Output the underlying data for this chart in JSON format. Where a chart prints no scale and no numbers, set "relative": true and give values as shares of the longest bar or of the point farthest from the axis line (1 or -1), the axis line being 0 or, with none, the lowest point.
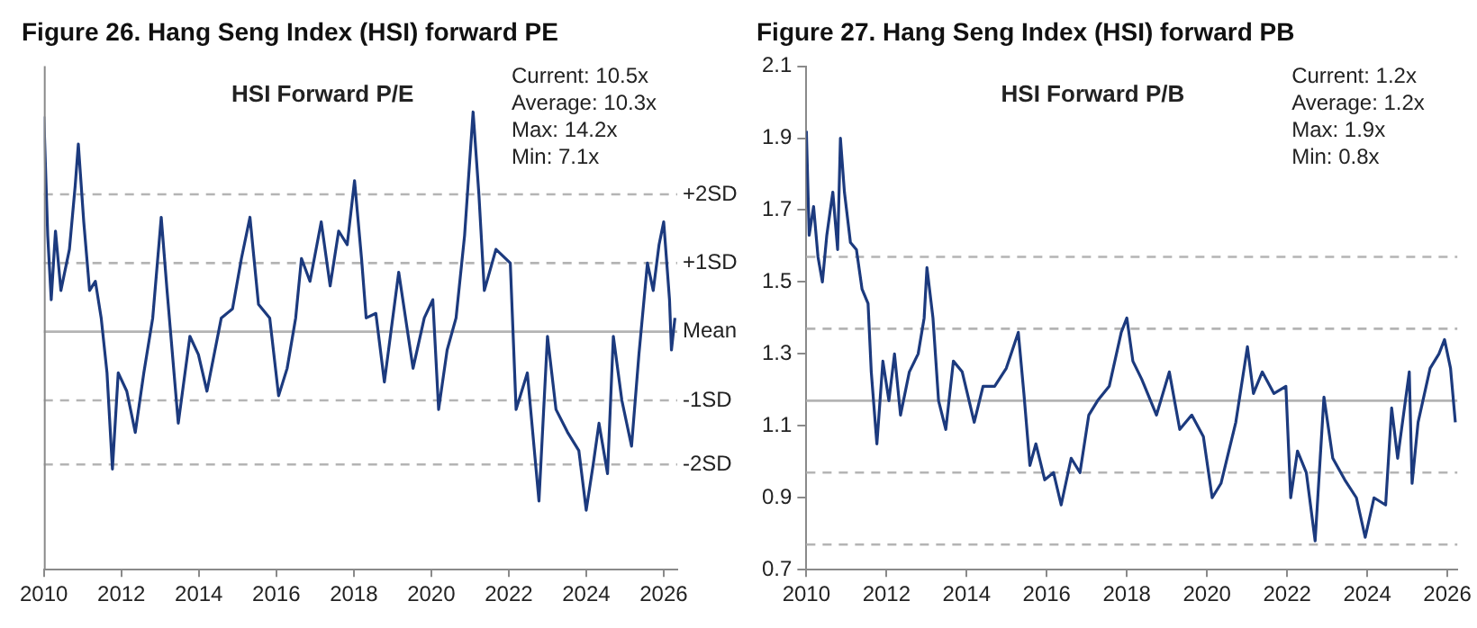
{
  "chart_data": [
    {
      "type": "line",
      "title": "Figure 26. Hang Seng Index (HSI) forward PE",
      "annotations": [
        "HSI Forward P/E",
        "Current: 10.5x",
        "Average: 10.3x",
        "Max: 14.2x",
        "Min: 7.1x"
      ],
      "x": [
        2010.0,
        2010.1,
        2010.19,
        2010.3,
        2010.44,
        2010.66,
        2010.81,
        2010.89,
        2011.03,
        2011.18,
        2011.33,
        2011.48,
        2011.63,
        2011.77,
        2011.92,
        2012.14,
        2012.36,
        2012.58,
        2012.81,
        2013.03,
        2013.18,
        2013.47,
        2013.77,
        2013.99,
        2014.21,
        2014.58,
        2014.87,
        2015.1,
        2015.32,
        2015.54,
        2015.83,
        2016.06,
        2016.28,
        2016.5,
        2016.65,
        2016.87,
        2017.16,
        2017.39,
        2017.61,
        2017.83,
        2018.02,
        2018.2,
        2018.32,
        2018.57,
        2018.79,
        2019.16,
        2019.53,
        2019.82,
        2020.04,
        2020.19,
        2020.41,
        2020.64,
        2020.86,
        2021.08,
        2021.23,
        2021.37,
        2021.67,
        2022.04,
        2022.19,
        2022.48,
        2022.78,
        2023.0,
        2023.22,
        2023.52,
        2023.81,
        2024.0,
        2024.18,
        2024.33,
        2024.55,
        2024.7,
        2024.92,
        2025.17,
        2025.36,
        2025.58,
        2025.73,
        2025.88,
        2026.0,
        2026.15,
        2026.2,
        2026.29
      ],
      "relative": true,
      "series": [
        {
          "color": "#1c3a7e",
          "values": [
            0.99,
            0.73,
            0.59,
            0.74,
            0.61,
            0.7,
            0.84,
            0.93,
            0.76,
            0.61,
            0.63,
            0.55,
            0.43,
            0.22,
            0.43,
            0.39,
            0.3,
            0.43,
            0.55,
            0.77,
            0.61,
            0.32,
            0.51,
            0.47,
            0.39,
            0.55,
            0.57,
            0.68,
            0.77,
            0.58,
            0.55,
            0.38,
            0.44,
            0.55,
            0.68,
            0.63,
            0.76,
            0.62,
            0.74,
            0.71,
            0.85,
            0.68,
            0.55,
            0.56,
            0.41,
            0.65,
            0.44,
            0.55,
            0.59,
            0.35,
            0.48,
            0.55,
            0.73,
            1,
            0.82,
            0.61,
            0.7,
            0.67,
            0.35,
            0.43,
            0.15,
            0.51,
            0.35,
            0.3,
            0.26,
            0.13,
            0.23,
            0.32,
            0.21,
            0.51,
            0.37,
            0.27,
            0.47,
            0.67,
            0.61,
            0.71,
            0.76,
            0.59,
            0.48,
            0.55
          ]
        }
      ],
      "xlim": [
        2010,
        2026.35
      ],
      "xticks": [
        2010,
        2012,
        2014,
        2016,
        2018,
        2020,
        2022,
        2024,
        2026
      ],
      "ref_lines": [
        {
          "axis": "y",
          "value": 0.82,
          "label": "+2SD",
          "color": "#b4b4b4",
          "line_style": "dashed"
        },
        {
          "axis": "y",
          "value": 0.67,
          "label": "+1SD",
          "color": "#b4b4b4",
          "line_style": "dashed"
        },
        {
          "axis": "y",
          "value": 0.52,
          "label": "Mean",
          "color": "#b4b4b4",
          "line_style": "solid"
        },
        {
          "axis": "y",
          "value": 0.37,
          "label": "-1SD",
          "color": "#b4b4b4",
          "line_style": "dashed"
        },
        {
          "axis": "y",
          "value": 0.23,
          "label": "-2SD",
          "color": "#b4b4b4",
          "line_style": "dashed"
        }
      ]
    },
    {
      "type": "line",
      "title": "Figure 27. Hang Seng Index (HSI) forward PB",
      "annotations": [
        "HSI Forward P/B",
        "Current: 1.2x",
        "Average: 1.2x",
        "Max: 1.9x",
        "Min: 0.8x"
      ],
      "x": [
        2010.0,
        2010.07,
        2010.18,
        2010.29,
        2010.4,
        2010.51,
        2010.66,
        2010.78,
        2010.85,
        2010.95,
        2011.1,
        2011.25,
        2011.39,
        2011.54,
        2011.62,
        2011.76,
        2011.91,
        2012.06,
        2012.2,
        2012.35,
        2012.57,
        2012.79,
        2012.94,
        2013.01,
        2013.16,
        2013.3,
        2013.48,
        2013.67,
        2013.89,
        2014.19,
        2014.41,
        2014.7,
        2014.99,
        2015.29,
        2015.43,
        2015.58,
        2015.73,
        2015.95,
        2016.17,
        2016.36,
        2016.61,
        2016.83,
        2017.05,
        2017.27,
        2017.56,
        2017.86,
        2018.0,
        2018.15,
        2018.37,
        2018.74,
        2019.06,
        2019.32,
        2019.62,
        2019.91,
        2020.13,
        2020.35,
        2020.72,
        2021.01,
        2021.16,
        2021.38,
        2021.67,
        2021.97,
        2022.09,
        2022.26,
        2022.48,
        2022.7,
        2022.92,
        2023.14,
        2023.44,
        2023.73,
        2023.95,
        2024.17,
        2024.46,
        2024.61,
        2024.76,
        2025.05,
        2025.12,
        2025.27,
        2025.57,
        2025.79,
        2025.93,
        2026.08,
        2026.2
      ],
      "series": [
        {
          "color": "#1c3a7e",
          "values": [
            1.92,
            1.63,
            1.71,
            1.57,
            1.5,
            1.63,
            1.75,
            1.59,
            1.9,
            1.75,
            1.61,
            1.59,
            1.48,
            1.44,
            1.25,
            1.05,
            1.28,
            1.17,
            1.3,
            1.13,
            1.25,
            1.3,
            1.4,
            1.54,
            1.4,
            1.17,
            1.09,
            1.28,
            1.25,
            1.11,
            1.21,
            1.21,
            1.26,
            1.36,
            1.19,
            0.99,
            1.05,
            0.95,
            0.97,
            0.88,
            1.01,
            0.97,
            1.13,
            1.17,
            1.21,
            1.36,
            1.4,
            1.28,
            1.23,
            1.13,
            1.25,
            1.09,
            1.13,
            1.07,
            0.9,
            0.94,
            1.11,
            1.32,
            1.19,
            1.25,
            1.19,
            1.21,
            0.9,
            1.03,
            0.97,
            0.78,
            1.18,
            1.01,
            0.95,
            0.9,
            0.79,
            0.9,
            0.88,
            1.15,
            1.01,
            1.25,
            0.94,
            1.11,
            1.26,
            1.3,
            1.34,
            1.26,
            1.11
          ]
        }
      ],
      "xlim": [
        2010,
        2026.25
      ],
      "xticks": [
        2010,
        2012,
        2014,
        2016,
        2018,
        2020,
        2022,
        2024,
        2026
      ],
      "ylim": [
        0.7,
        2.1
      ],
      "yticks": [
        0.7,
        0.9,
        1.1,
        1.3,
        1.5,
        1.7,
        1.9,
        2.1
      ],
      "ref_lines": [
        {
          "axis": "y",
          "value": 1.57,
          "color": "#b4b4b4",
          "line_style": "dashed"
        },
        {
          "axis": "y",
          "value": 1.37,
          "color": "#b4b4b4",
          "line_style": "dashed"
        },
        {
          "axis": "y",
          "value": 1.17,
          "color": "#b4b4b4",
          "line_style": "solid"
        },
        {
          "axis": "y",
          "value": 0.97,
          "color": "#b4b4b4",
          "line_style": "dashed"
        },
        {
          "axis": "y",
          "value": 0.77,
          "color": "#b4b4b4",
          "line_style": "dashed"
        }
      ]
    }
  ]
}
